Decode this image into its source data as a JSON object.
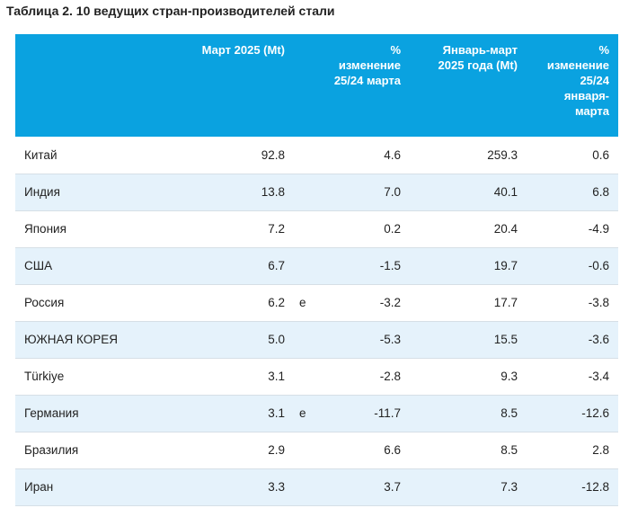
{
  "caption": "Таблица 2. 10 ведущих стран-производителей стали",
  "headers": {
    "country": "",
    "march": "Март 2025 (Mt)",
    "flag": "",
    "pct_march": "% изменение 25/24 марта",
    "jan_march": "Январь-март 2025 года (Mt)",
    "pct_jan_march": "% изменение 25/24 января-марта"
  },
  "rows": [
    {
      "country": "Китай",
      "march": "92.8",
      "flag": "",
      "pct_march": "4.6",
      "jan_march": "259.3",
      "pct_jan_march": "0.6"
    },
    {
      "country": "Индия",
      "march": "13.8",
      "flag": "",
      "pct_march": "7.0",
      "jan_march": "40.1",
      "pct_jan_march": "6.8"
    },
    {
      "country": "Япония",
      "march": "7.2",
      "flag": "",
      "pct_march": "0.2",
      "jan_march": "20.4",
      "pct_jan_march": "-4.9"
    },
    {
      "country": "США",
      "march": "6.7",
      "flag": "",
      "pct_march": "-1.5",
      "jan_march": "19.7",
      "pct_jan_march": "-0.6"
    },
    {
      "country": "Россия",
      "march": "6.2",
      "flag": "e",
      "pct_march": "-3.2",
      "jan_march": "17.7",
      "pct_jan_march": "-3.8"
    },
    {
      "country": "ЮЖНАЯ КОРЕЯ",
      "march": "5.0",
      "flag": "",
      "pct_march": "-5.3",
      "jan_march": "15.5",
      "pct_jan_march": "-3.6"
    },
    {
      "country": "Türkiye",
      "march": "3.1",
      "flag": "",
      "pct_march": "-2.8",
      "jan_march": "9.3",
      "pct_jan_march": "-3.4"
    },
    {
      "country": "Германия",
      "march": "3.1",
      "flag": "e",
      "pct_march": "-11.7",
      "jan_march": "8.5",
      "pct_jan_march": "-12.6"
    },
    {
      "country": "Бразилия",
      "march": "2.9",
      "flag": "",
      "pct_march": "6.6",
      "jan_march": "8.5",
      "pct_jan_march": "2.8"
    },
    {
      "country": "Иран",
      "march": "3.3",
      "flag": "",
      "pct_march": "3.7",
      "jan_march": "7.3",
      "pct_jan_march": "-12.8"
    }
  ],
  "colors": {
    "header_bg": "#0aa2e0",
    "header_text": "#ffffff",
    "stripe_bg": "#e5f2fb",
    "row_border": "#d6dfe6"
  }
}
